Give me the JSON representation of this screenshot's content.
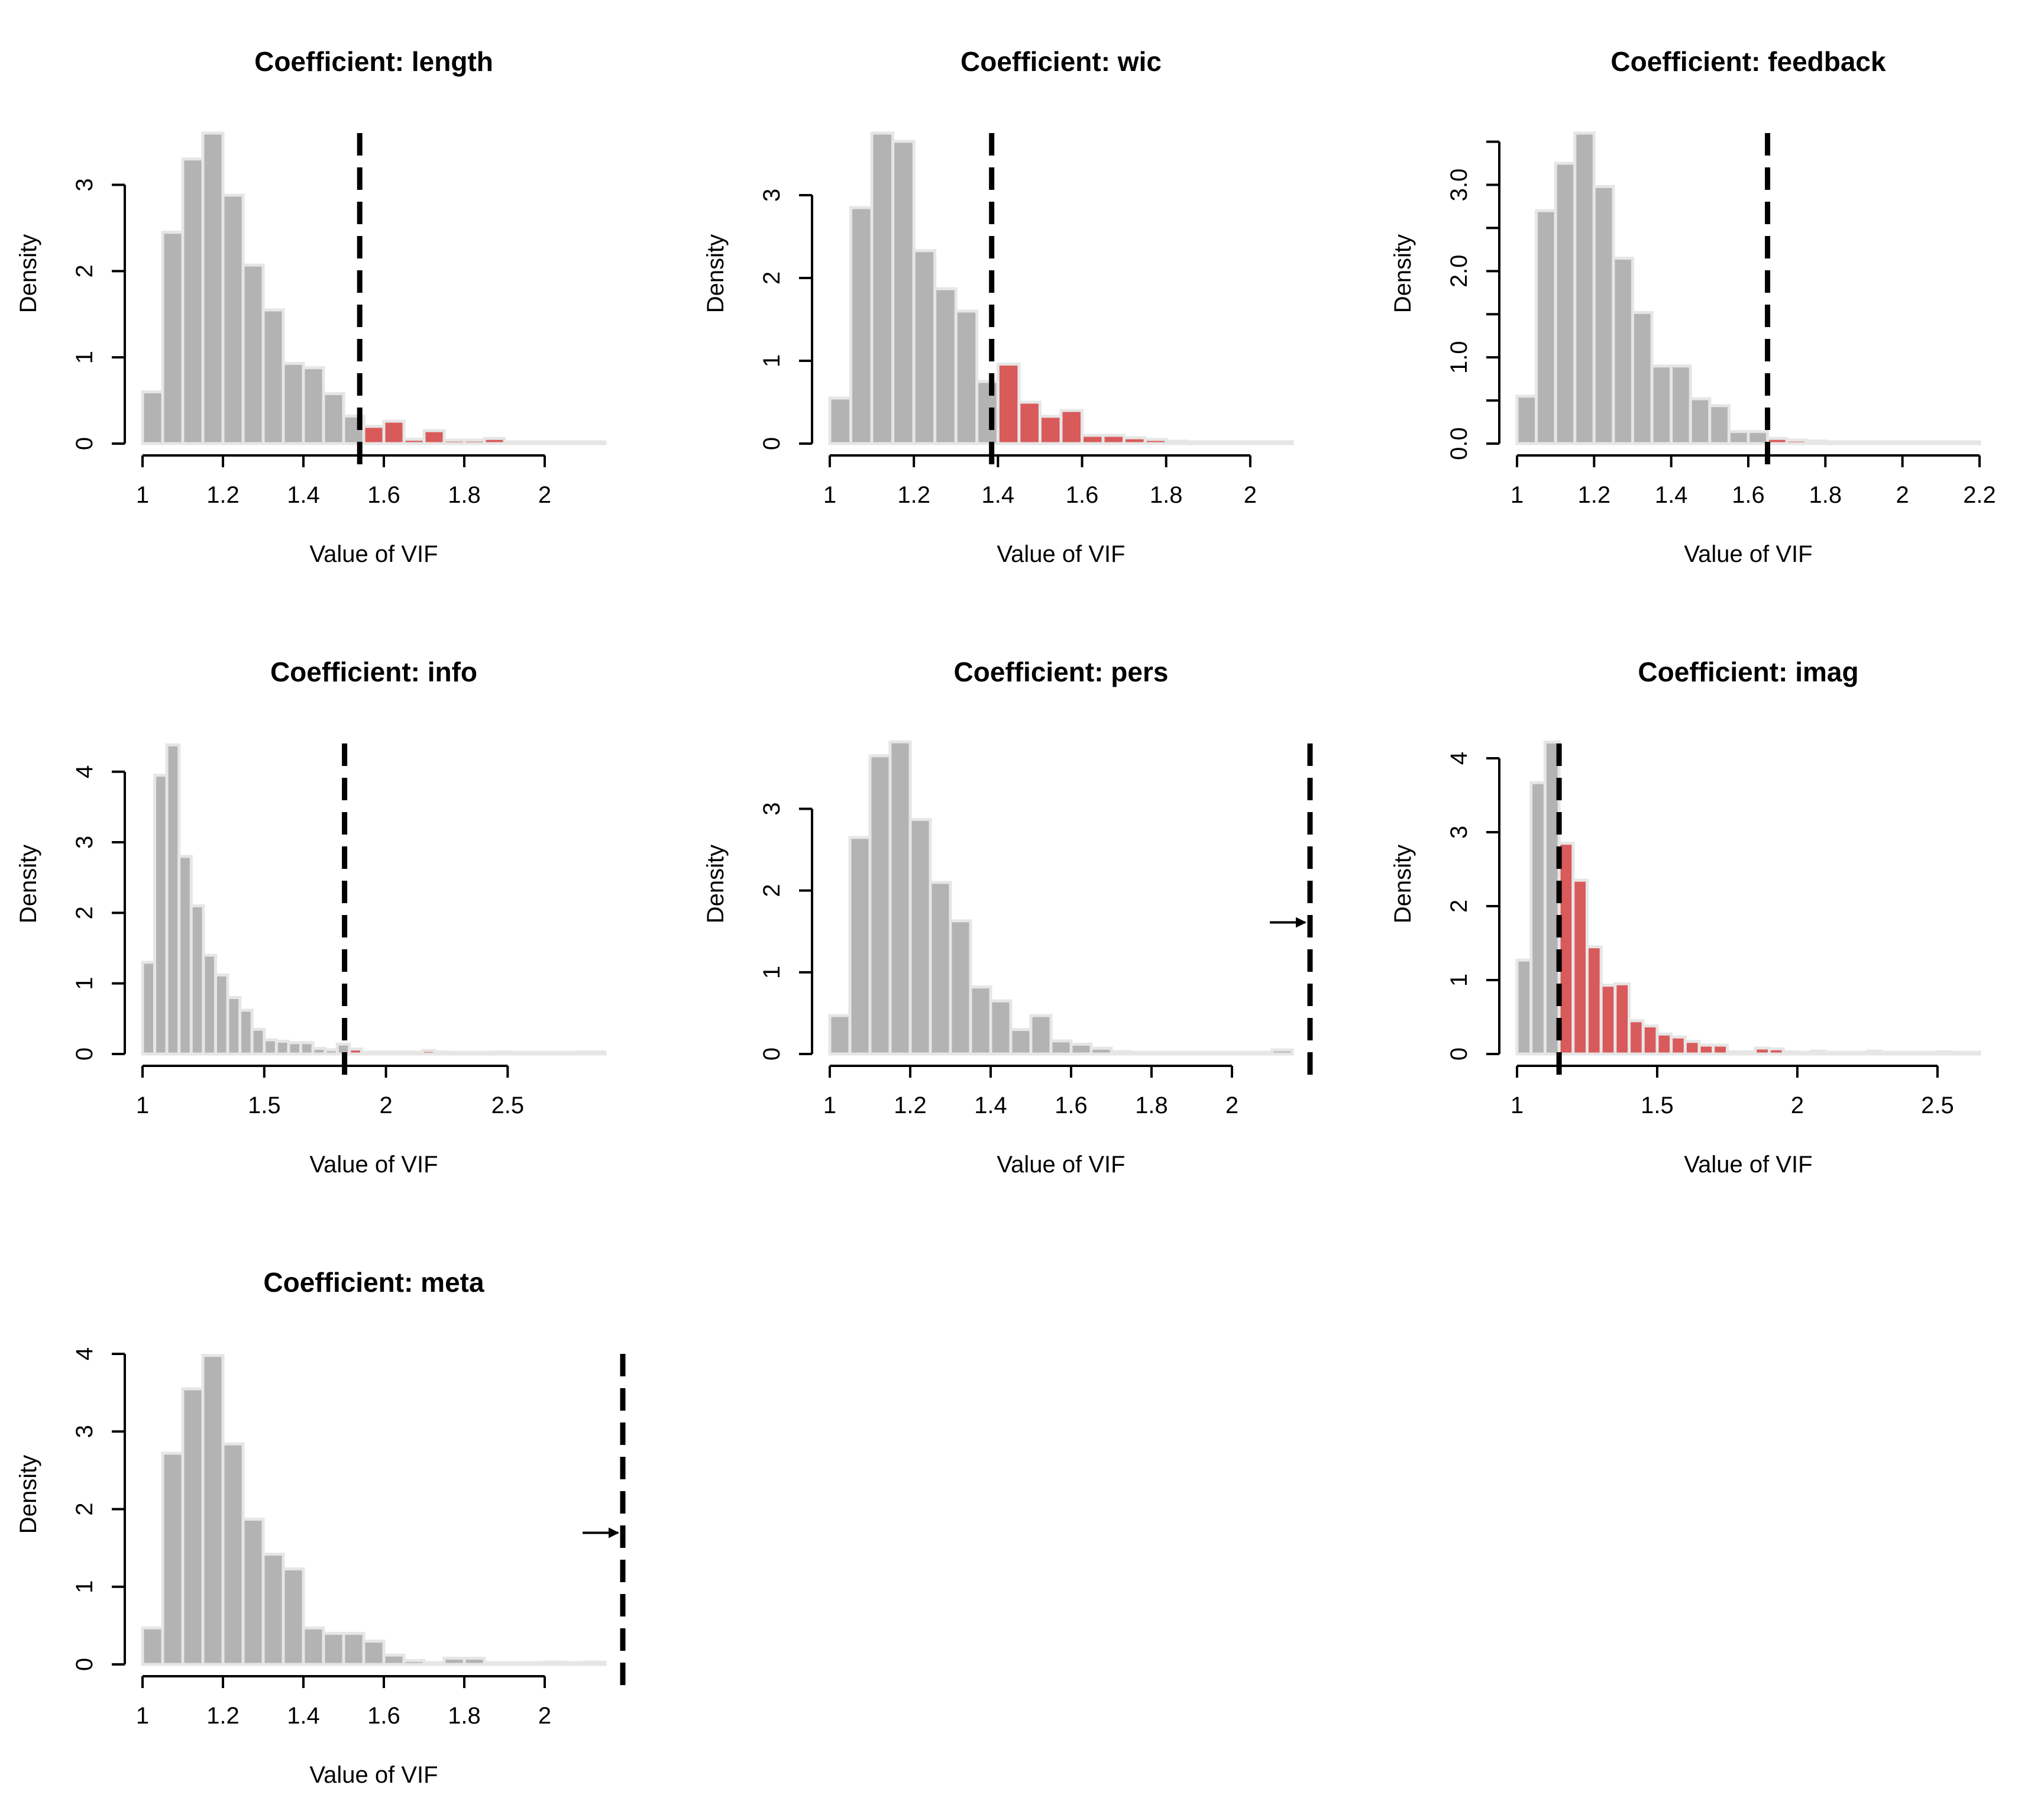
{
  "chart_data": [
    {
      "type": "bar",
      "title": "Coefficient: length",
      "xlabel": "Value of VIF",
      "ylabel": "Density",
      "xlim": [
        1,
        2.15
      ],
      "ylim": [
        0,
        3.6
      ],
      "x_ticks": [
        1,
        1.2,
        1.4,
        1.6,
        1.8,
        2
      ],
      "x_tick_labels": [
        "1",
        "1.2",
        "1.4",
        "1.6",
        "1.8",
        "2"
      ],
      "y_ticks": [
        0,
        1,
        2,
        3
      ],
      "y_tick_labels": [
        "0",
        "1",
        "2",
        "3"
      ],
      "bin_start": 1,
      "bin_width": 0.05,
      "densities": [
        0.6,
        2.45,
        3.3,
        3.6,
        2.88,
        2.07,
        1.55,
        0.93,
        0.88,
        0.58,
        0.32,
        0.2,
        0.26,
        0.05,
        0.15,
        0.04,
        0.04,
        0.06,
        0.0,
        0.02,
        0.0,
        0.02,
        0.02
      ],
      "observed_vif": 1.54,
      "offscale_marker": false,
      "colors": {
        "below": "#b3b3b3",
        "above": "#d95a5a",
        "bar_edge": "#e6e6e6",
        "tail": "#e3e3e3"
      }
    },
    {
      "type": "bar",
      "title": "Coefficient: wic",
      "xlabel": "Value of VIF",
      "ylabel": "Density",
      "xlim": [
        1,
        2.1
      ],
      "ylim": [
        0,
        3.75
      ],
      "x_ticks": [
        1,
        1.2,
        1.4,
        1.6,
        1.8,
        2
      ],
      "x_tick_labels": [
        "1",
        "1.2",
        "1.4",
        "1.6",
        "1.8",
        "2"
      ],
      "y_ticks": [
        0,
        1,
        2,
        3
      ],
      "y_tick_labels": [
        "0",
        "1",
        "2",
        "3"
      ],
      "bin_start": 1,
      "bin_width": 0.05,
      "densities": [
        0.55,
        2.85,
        3.75,
        3.65,
        2.33,
        1.87,
        1.6,
        0.75,
        0.96,
        0.5,
        0.33,
        0.4,
        0.1,
        0.1,
        0.07,
        0.05,
        0.03,
        0.02,
        0.0,
        0.02,
        0.0,
        0.02
      ],
      "observed_vif": 1.385,
      "offscale_marker": false,
      "colors": {
        "below": "#b3b3b3",
        "above": "#d95a5a",
        "bar_edge": "#e6e6e6",
        "tail": "#e3e3e3"
      }
    },
    {
      "type": "bar",
      "title": "Coefficient: feedback",
      "xlabel": "Value of VIF",
      "ylabel": "Density",
      "xlim": [
        1,
        2.2
      ],
      "ylim": [
        0,
        3.6
      ],
      "x_ticks": [
        1,
        1.2,
        1.4,
        1.6,
        1.8,
        2,
        2.2
      ],
      "x_tick_labels": [
        "1",
        "1.2",
        "1.4",
        "1.6",
        "1.8",
        "2",
        "2.2"
      ],
      "y_ticks": [
        0,
        1,
        2,
        3
      ],
      "y_tick_labels": [
        "0.0",
        "1.0",
        "2.0",
        "3.0"
      ],
      "y_minor_ticks": [
        0.5,
        1.5,
        2.5,
        3.5
      ],
      "bin_start": 1,
      "bin_width": 0.05,
      "densities": [
        0.55,
        2.7,
        3.25,
        3.6,
        2.98,
        2.15,
        1.52,
        0.9,
        0.9,
        0.52,
        0.44,
        0.14,
        0.14,
        0.06,
        0.04,
        0.03,
        0.0,
        0.02,
        0.02,
        0.02,
        0.0,
        0.0,
        0.02,
        0.02
      ],
      "observed_vif": 1.65,
      "offscale_marker": false,
      "colors": {
        "below": "#b3b3b3",
        "above": "#d95a5a",
        "bar_edge": "#e6e6e6",
        "tail": "#e3e3e3"
      }
    },
    {
      "type": "bar",
      "title": "Coefficient: info",
      "xlabel": "Value of VIF",
      "ylabel": "Density",
      "xlim": [
        1,
        2.9
      ],
      "ylim": [
        0,
        4.4
      ],
      "x_ticks": [
        1,
        1.5,
        2,
        2.5
      ],
      "x_tick_labels": [
        "1",
        "1.5",
        "2",
        "2.5"
      ],
      "y_ticks": [
        0,
        1,
        2,
        3,
        4
      ],
      "y_tick_labels": [
        "0",
        "1",
        "2",
        "3",
        "4"
      ],
      "bin_start": 1,
      "bin_width": 0.05,
      "densities": [
        1.3,
        3.95,
        4.38,
        2.8,
        2.1,
        1.4,
        1.12,
        0.8,
        0.62,
        0.35,
        0.2,
        0.18,
        0.16,
        0.16,
        0.08,
        0.06,
        0.14,
        0.07,
        0.0,
        0.03,
        0.0,
        0.03,
        0.0,
        0.05,
        0.03,
        0.02,
        0.02,
        0.0,
        0.0,
        0.03,
        0.0,
        0.0,
        0.0,
        0.0,
        0.0,
        0.0,
        0.03,
        0.03
      ],
      "observed_vif": 1.83,
      "offscale_marker": false,
      "colors": {
        "below": "#b3b3b3",
        "above": "#d95a5a",
        "bar_edge": "#e6e6e6",
        "tail": "#e3e3e3"
      }
    },
    {
      "type": "bar",
      "title": "Coefficient: pers",
      "xlabel": "Value of VIF",
      "ylabel": "Density",
      "xlim": [
        1,
        2.15
      ],
      "ylim": [
        0,
        3.8
      ],
      "x_ticks": [
        1,
        1.2,
        1.4,
        1.6,
        1.8,
        2
      ],
      "x_tick_labels": [
        "1",
        "1.2",
        "1.4",
        "1.6",
        "1.8",
        "2"
      ],
      "y_ticks": [
        0,
        1,
        2,
        3
      ],
      "y_tick_labels": [
        "0",
        "1",
        "2",
        "3"
      ],
      "bin_start": 1,
      "bin_width": 0.05,
      "densities": [
        0.47,
        2.65,
        3.65,
        3.82,
        2.87,
        2.1,
        1.63,
        0.82,
        0.65,
        0.3,
        0.47,
        0.16,
        0.12,
        0.07,
        0.03,
        0.0,
        0.0,
        0.0,
        0.0,
        0.0,
        0.0,
        0.0,
        0.05
      ],
      "observed_vif": null,
      "offscale_marker": true,
      "colors": {
        "below": "#b3b3b3",
        "above": "#d95a5a",
        "bar_edge": "#e6e6e6",
        "tail": "#e3e3e3"
      }
    },
    {
      "type": "bar",
      "title": "Coefficient: imag",
      "xlabel": "Value of VIF",
      "ylabel": "Density",
      "xlim": [
        1,
        2.65
      ],
      "ylim": [
        0,
        4.2
      ],
      "x_ticks": [
        1,
        1.5,
        2,
        2.5
      ],
      "x_tick_labels": [
        "1",
        "1.5",
        "2",
        "2.5"
      ],
      "y_ticks": [
        0,
        1,
        2,
        3,
        4
      ],
      "y_tick_labels": [
        "0",
        "1",
        "2",
        "3",
        "4"
      ],
      "bin_start": 1,
      "bin_width": 0.05,
      "densities": [
        1.27,
        3.67,
        4.22,
        2.85,
        2.35,
        1.45,
        0.93,
        0.95,
        0.45,
        0.38,
        0.27,
        0.23,
        0.17,
        0.12,
        0.12,
        0.03,
        0.03,
        0.08,
        0.07,
        0.03,
        0.0,
        0.04,
        0.0,
        0.0,
        0.0,
        0.04,
        0.0,
        0.0,
        0.0,
        0.0,
        0.03,
        0.02,
        0.02
      ],
      "observed_vif": 1.15,
      "offscale_marker": false,
      "colors": {
        "below": "#b3b3b3",
        "above": "#d95a5a",
        "bar_edge": "#e6e6e6",
        "tail": "#e3e3e3"
      }
    },
    {
      "type": "bar",
      "title": "Coefficient: meta",
      "xlabel": "Value of VIF",
      "ylabel": "Density",
      "xlim": [
        1,
        2.15
      ],
      "ylim": [
        0,
        4.0
      ],
      "x_ticks": [
        1,
        1.2,
        1.4,
        1.6,
        1.8,
        2
      ],
      "x_tick_labels": [
        "1",
        "1.2",
        "1.4",
        "1.6",
        "1.8",
        "2"
      ],
      "y_ticks": [
        0,
        1,
        2,
        3,
        4
      ],
      "y_tick_labels": [
        "0",
        "1",
        "2",
        "3",
        "4"
      ],
      "bin_start": 1,
      "bin_width": 0.05,
      "densities": [
        0.47,
        2.72,
        3.55,
        3.98,
        2.84,
        1.87,
        1.42,
        1.23,
        0.47,
        0.4,
        0.4,
        0.3,
        0.12,
        0.05,
        0.0,
        0.08,
        0.08,
        0.0,
        0.0,
        0.0,
        0.03,
        0.0,
        0.03
      ],
      "observed_vif": null,
      "offscale_marker": true,
      "colors": {
        "below": "#b3b3b3",
        "above": "#d95a5a",
        "bar_edge": "#e6e6e6",
        "tail": "#e3e3e3"
      }
    }
  ]
}
